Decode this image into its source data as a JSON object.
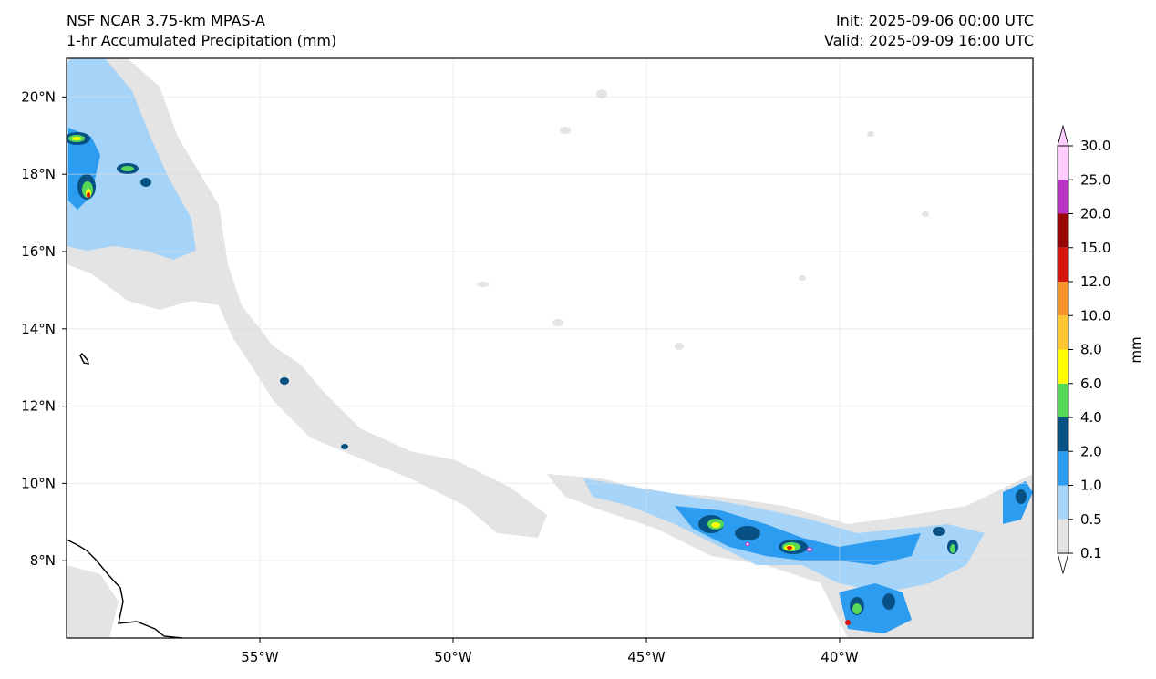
{
  "header": {
    "title_left_1": "NSF NCAR 3.75-km MPAS-A",
    "title_left_2": "1-hr Accumulated Precipitation (mm)",
    "title_right_1": "Init: 2025-09-06 00:00 UTC",
    "title_right_2": "Valid: 2025-09-09 16:00 UTC"
  },
  "map": {
    "lon_ticks": [
      {
        "lon": -55,
        "label": "55°W"
      },
      {
        "lon": -50,
        "label": "50°W"
      },
      {
        "lon": -45,
        "label": "45°W"
      },
      {
        "lon": -40,
        "label": "40°W"
      }
    ],
    "lat_ticks": [
      {
        "lat": 20,
        "label": "20°N"
      },
      {
        "lat": 18,
        "label": "18°N"
      },
      {
        "lat": 16,
        "label": "16°N"
      },
      {
        "lat": 14,
        "label": "14°N"
      },
      {
        "lat": 12,
        "label": "12°N"
      },
      {
        "lat": 10,
        "label": "10°N"
      },
      {
        "lat": 8,
        "label": "8°N"
      }
    ],
    "extent": {
      "lon_min": -60,
      "lon_max": -35,
      "lat_min": 6,
      "lat_max": 21
    },
    "gridlines": true
  },
  "colorbar": {
    "label": "mm",
    "levels": [
      "0.1",
      "0.5",
      "1.0",
      "2.0",
      "4.0",
      "6.0",
      "8.0",
      "10.0",
      "12.0",
      "15.0",
      "20.0",
      "25.0",
      "30.0"
    ],
    "colors": [
      "#e4e4e4",
      "#a6d3f8",
      "#2c9cf0",
      "#085185",
      "#58d858",
      "#ffff00",
      "#ffc633",
      "#f5922a",
      "#d6150f",
      "#980606",
      "#b833c4",
      "#ffccff"
    ]
  }
}
